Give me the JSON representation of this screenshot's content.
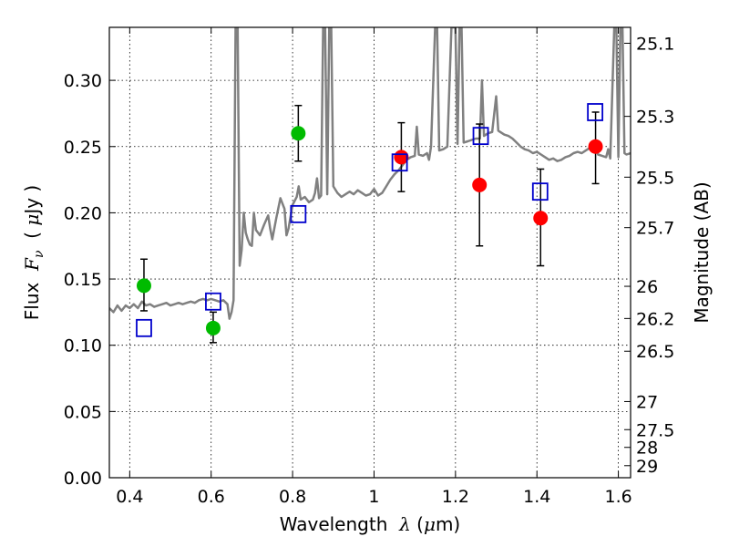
{
  "chart_data": {
    "type": "scatter",
    "xlabel_prefix": "Wavelength  ",
    "xlabel_symbol": "λ",
    "xlabel_units_open": " (",
    "xlabel_units_mu": "μ",
    "xlabel_units_close": "m)",
    "ylabel_prefix": "Flux  ",
    "ylabel_symbol": "F",
    "ylabel_subscript": "ν",
    "ylabel_units_open": "  ( ",
    "ylabel_units_mu": "μ",
    "ylabel_units_close": "Jy )",
    "y2label": "Magnitude (AB)",
    "xlim": [
      0.35,
      1.63
    ],
    "ylim": [
      0.0,
      0.34
    ],
    "grid": true,
    "x_ticks": [
      {
        "value": 0.4,
        "label": "0.4"
      },
      {
        "value": 0.6,
        "label": "0.6"
      },
      {
        "value": 0.8,
        "label": "0.8"
      },
      {
        "value": 1.0,
        "label": "1"
      },
      {
        "value": 1.2,
        "label": "1.2"
      },
      {
        "value": 1.4,
        "label": "1.4"
      },
      {
        "value": 1.6,
        "label": "1.6"
      }
    ],
    "y_ticks": [
      {
        "value": 0.0,
        "label": "0.00"
      },
      {
        "value": 0.05,
        "label": "0.05"
      },
      {
        "value": 0.1,
        "label": "0.10"
      },
      {
        "value": 0.15,
        "label": "0.15"
      },
      {
        "value": 0.2,
        "label": "0.20"
      },
      {
        "value": 0.25,
        "label": "0.25"
      },
      {
        "value": 0.3,
        "label": "0.30"
      }
    ],
    "y2_ticks": [
      {
        "flux": 0.328,
        "label": "25.1"
      },
      {
        "flux": 0.2728,
        "label": "25.3"
      },
      {
        "flux": 0.2269,
        "label": "25.5"
      },
      {
        "flux": 0.1888,
        "label": "25.7"
      },
      {
        "flux": 0.1445,
        "label": "26"
      },
      {
        "flux": 0.1202,
        "label": "26.2"
      },
      {
        "flux": 0.0955,
        "label": "26.5"
      },
      {
        "flux": 0.0575,
        "label": "27"
      },
      {
        "flux": 0.0363,
        "label": "27.5"
      },
      {
        "flux": 0.0229,
        "label": "28"
      },
      {
        "flux": 0.0091,
        "label": "29"
      }
    ],
    "colors": {
      "green": "#00bb00",
      "red": "#ff0000",
      "model_box": "#0000cc",
      "spectrum": "#808080",
      "errorbar": "#000000",
      "grid": "#000000"
    },
    "series": [
      {
        "marker": "green-circle",
        "points": [
          {
            "x": 0.435,
            "y": 0.145,
            "err_lo": 0.019,
            "err_hi": 0.02
          },
          {
            "x": 0.605,
            "y": 0.113,
            "err_lo": 0.011,
            "err_hi": 0.012
          },
          {
            "x": 0.814,
            "y": 0.26,
            "err_lo": 0.021,
            "err_hi": 0.021
          }
        ]
      },
      {
        "marker": "red-circle",
        "points": [
          {
            "x": 1.067,
            "y": 0.242,
            "err_lo": 0.026,
            "err_hi": 0.026
          },
          {
            "x": 1.259,
            "y": 0.221,
            "err_lo": 0.046,
            "err_hi": 0.046
          },
          {
            "x": 1.409,
            "y": 0.196,
            "err_lo": 0.036,
            "err_hi": 0.037
          },
          {
            "x": 1.544,
            "y": 0.25,
            "err_lo": 0.028,
            "err_hi": 0.026
          }
        ]
      },
      {
        "marker": "blue-open-square",
        "points": [
          {
            "x": 0.435,
            "y": 0.113
          },
          {
            "x": 0.605,
            "y": 0.133
          },
          {
            "x": 0.814,
            "y": 0.199
          },
          {
            "x": 1.063,
            "y": 0.238
          },
          {
            "x": 1.262,
            "y": 0.258
          },
          {
            "x": 1.408,
            "y": 0.216
          },
          {
            "x": 1.543,
            "y": 0.276
          }
        ]
      },
      {
        "marker": "gray-line",
        "points": [
          [
            0.35,
            0.128
          ],
          [
            0.36,
            0.125
          ],
          [
            0.37,
            0.13
          ],
          [
            0.38,
            0.126
          ],
          [
            0.39,
            0.13
          ],
          [
            0.4,
            0.128
          ],
          [
            0.41,
            0.131
          ],
          [
            0.42,
            0.128
          ],
          [
            0.43,
            0.133
          ],
          [
            0.44,
            0.13
          ],
          [
            0.45,
            0.131
          ],
          [
            0.46,
            0.129
          ],
          [
            0.47,
            0.13
          ],
          [
            0.48,
            0.131
          ],
          [
            0.49,
            0.132
          ],
          [
            0.5,
            0.13
          ],
          [
            0.51,
            0.131
          ],
          [
            0.52,
            0.132
          ],
          [
            0.53,
            0.131
          ],
          [
            0.54,
            0.132
          ],
          [
            0.55,
            0.133
          ],
          [
            0.56,
            0.132
          ],
          [
            0.57,
            0.134
          ],
          [
            0.58,
            0.135
          ],
          [
            0.59,
            0.134
          ],
          [
            0.6,
            0.135
          ],
          [
            0.61,
            0.134
          ],
          [
            0.62,
            0.133
          ],
          [
            0.63,
            0.134
          ],
          [
            0.64,
            0.131
          ],
          [
            0.645,
            0.12
          ],
          [
            0.65,
            0.125
          ],
          [
            0.655,
            0.134
          ],
          [
            0.66,
            0.34
          ],
          [
            0.665,
            0.34
          ],
          [
            0.67,
            0.16
          ],
          [
            0.675,
            0.172
          ],
          [
            0.68,
            0.2
          ],
          [
            0.685,
            0.185
          ],
          [
            0.69,
            0.18
          ],
          [
            0.695,
            0.176
          ],
          [
            0.7,
            0.175
          ],
          [
            0.705,
            0.2
          ],
          [
            0.71,
            0.187
          ],
          [
            0.72,
            0.183
          ],
          [
            0.73,
            0.191
          ],
          [
            0.74,
            0.198
          ],
          [
            0.745,
            0.188
          ],
          [
            0.75,
            0.18
          ],
          [
            0.76,
            0.196
          ],
          [
            0.77,
            0.211
          ],
          [
            0.78,
            0.203
          ],
          [
            0.785,
            0.183
          ],
          [
            0.79,
            0.188
          ],
          [
            0.8,
            0.206
          ],
          [
            0.81,
            0.212
          ],
          [
            0.815,
            0.22
          ],
          [
            0.82,
            0.21
          ],
          [
            0.83,
            0.212
          ],
          [
            0.84,
            0.208
          ],
          [
            0.85,
            0.21
          ],
          [
            0.855,
            0.215
          ],
          [
            0.86,
            0.226
          ],
          [
            0.865,
            0.211
          ],
          [
            0.87,
            0.213
          ],
          [
            0.875,
            0.34
          ],
          [
            0.88,
            0.34
          ],
          [
            0.885,
            0.214
          ],
          [
            0.89,
            0.34
          ],
          [
            0.895,
            0.34
          ],
          [
            0.9,
            0.22
          ],
          [
            0.91,
            0.215
          ],
          [
            0.92,
            0.212
          ],
          [
            0.93,
            0.214
          ],
          [
            0.94,
            0.216
          ],
          [
            0.95,
            0.214
          ],
          [
            0.96,
            0.217
          ],
          [
            0.97,
            0.215
          ],
          [
            0.98,
            0.213
          ],
          [
            0.99,
            0.214
          ],
          [
            1.0,
            0.218
          ],
          [
            1.01,
            0.213
          ],
          [
            1.02,
            0.215
          ],
          [
            1.03,
            0.22
          ],
          [
            1.04,
            0.225
          ],
          [
            1.05,
            0.229
          ],
          [
            1.06,
            0.232
          ],
          [
            1.07,
            0.236
          ],
          [
            1.08,
            0.24
          ],
          [
            1.09,
            0.242
          ],
          [
            1.1,
            0.243
          ],
          [
            1.105,
            0.265
          ],
          [
            1.11,
            0.244
          ],
          [
            1.12,
            0.243
          ],
          [
            1.13,
            0.245
          ],
          [
            1.135,
            0.24
          ],
          [
            1.14,
            0.25
          ],
          [
            1.15,
            0.34
          ],
          [
            1.155,
            0.34
          ],
          [
            1.16,
            0.247
          ],
          [
            1.17,
            0.248
          ],
          [
            1.18,
            0.25
          ],
          [
            1.19,
            0.34
          ],
          [
            1.2,
            0.34
          ],
          [
            1.205,
            0.252
          ],
          [
            1.21,
            0.34
          ],
          [
            1.215,
            0.34
          ],
          [
            1.22,
            0.253
          ],
          [
            1.23,
            0.254
          ],
          [
            1.24,
            0.255
          ],
          [
            1.25,
            0.256
          ],
          [
            1.26,
            0.256
          ],
          [
            1.265,
            0.3
          ],
          [
            1.27,
            0.258
          ],
          [
            1.28,
            0.26
          ],
          [
            1.29,
            0.261
          ],
          [
            1.3,
            0.288
          ],
          [
            1.305,
            0.262
          ],
          [
            1.31,
            0.261
          ],
          [
            1.32,
            0.259
          ],
          [
            1.33,
            0.258
          ],
          [
            1.34,
            0.256
          ],
          [
            1.35,
            0.253
          ],
          [
            1.36,
            0.25
          ],
          [
            1.37,
            0.248
          ],
          [
            1.38,
            0.247
          ],
          [
            1.39,
            0.245
          ],
          [
            1.4,
            0.246
          ],
          [
            1.41,
            0.244
          ],
          [
            1.42,
            0.242
          ],
          [
            1.43,
            0.24
          ],
          [
            1.44,
            0.241
          ],
          [
            1.45,
            0.239
          ],
          [
            1.46,
            0.24
          ],
          [
            1.47,
            0.242
          ],
          [
            1.48,
            0.243
          ],
          [
            1.49,
            0.245
          ],
          [
            1.5,
            0.246
          ],
          [
            1.51,
            0.245
          ],
          [
            1.52,
            0.247
          ],
          [
            1.53,
            0.249
          ],
          [
            1.54,
            0.246
          ],
          [
            1.545,
            0.25
          ],
          [
            1.55,
            0.244
          ],
          [
            1.56,
            0.243
          ],
          [
            1.57,
            0.242
          ],
          [
            1.575,
            0.248
          ],
          [
            1.58,
            0.241
          ],
          [
            1.59,
            0.34
          ],
          [
            1.595,
            0.34
          ],
          [
            1.6,
            0.242
          ],
          [
            1.605,
            0.34
          ],
          [
            1.61,
            0.34
          ],
          [
            1.615,
            0.245
          ],
          [
            1.62,
            0.244
          ],
          [
            1.63,
            0.245
          ]
        ]
      }
    ]
  }
}
